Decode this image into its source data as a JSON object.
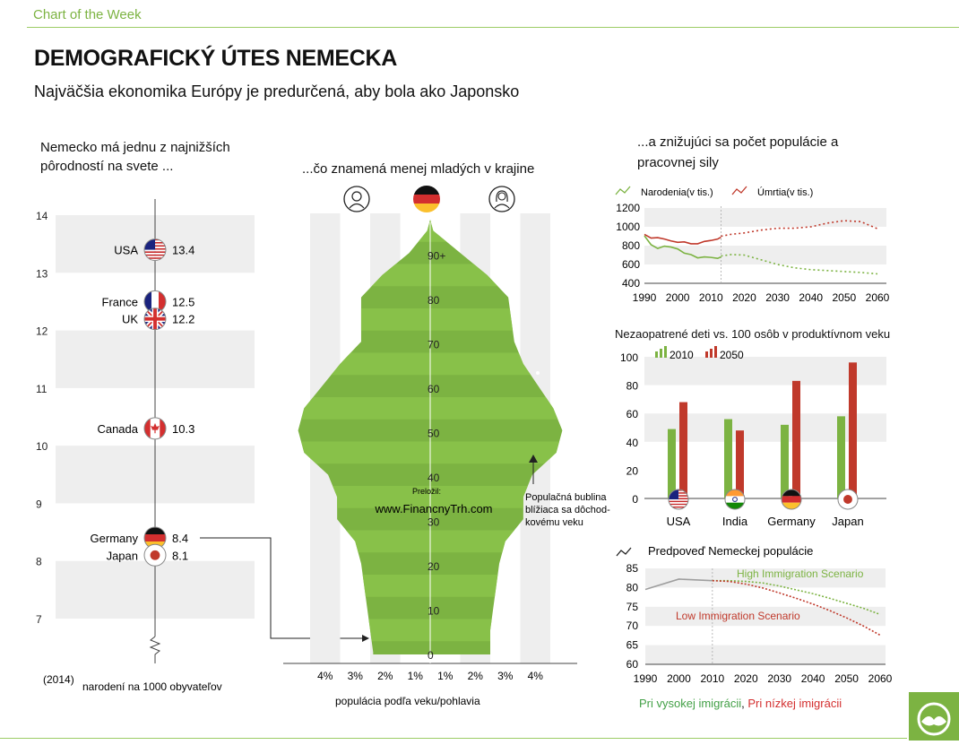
{
  "header": {
    "kicker": "Chart of the Week",
    "title": "DEMOGRAFICKÝ ÚTES NEMECKA",
    "subtitle": "Najväčšia ekonomika Európy je predurčená, aby bola ako Japonsko"
  },
  "left_panel": {
    "heading_line1": "Nemecko má jednu z najnižších",
    "heading_line2": "pôrodností na svete ...",
    "year_label": "(2014)",
    "axis_label": "narodení na 1000 obyvateľov"
  },
  "middle_panel": {
    "heading": "...čo znamená menej mladých v krajine",
    "xlabel": "populácia podľa veku/pohlavia",
    "watermark_line1": "Preložil:",
    "watermark_line2": "www.FinancnyTrh.com",
    "annotation_line1": "Populačná bublina",
    "annotation_line2": "blížiaca sa dôchod-",
    "annotation_line3": "kovému veku",
    "icons": [
      "male-icon",
      "germany-flag-icon",
      "female-icon"
    ]
  },
  "right_top": {
    "heading_line1": "...a znižujúci sa počet populácie a",
    "heading_line2": "pracovnej sily"
  },
  "right_mid": {
    "heading": "Nezaopatrené deti vs. 100 osôb v produktívnom veku"
  },
  "right_bottom": {
    "heading": "Predpoveď Nemeckej populácie",
    "high_label": "High Immigration Scenario",
    "low_label": "Low Immigration Scenario"
  },
  "footnote": {
    "green_text": "Pri vysokej imigrácii",
    "separator": ", ",
    "red_text": "Pri nízkej imigrácii"
  },
  "colors": {
    "green": "#7cb342",
    "dark_green": "#43a047",
    "red": "#c0392b",
    "band": "#eeeeee"
  },
  "chart_data": [
    {
      "type": "scatter",
      "ylim": [
        6.4,
        14
      ],
      "yticks": [
        7,
        8,
        9,
        10,
        11,
        12,
        13,
        14
      ],
      "points": [
        {
          "country": "USA",
          "value": 13.4,
          "label_side": "left"
        },
        {
          "country": "France",
          "value": 12.5,
          "label_side": "left"
        },
        {
          "country": "UK",
          "value": 12.2,
          "label_side": "left"
        },
        {
          "country": "Canada",
          "value": 10.3,
          "label_side": "left"
        },
        {
          "country": "Germany",
          "value": 8.4,
          "label_side": "left"
        },
        {
          "country": "Japan",
          "value": 8.1,
          "label_side": "left"
        }
      ]
    },
    {
      "type": "area",
      "ages": [
        0,
        5,
        10,
        15,
        20,
        25,
        30,
        35,
        40,
        45,
        50,
        55,
        60,
        65,
        70,
        75,
        80,
        85,
        90,
        95
      ],
      "male": [
        1.9,
        2.0,
        2.1,
        2.2,
        2.3,
        2.5,
        3.1,
        3.1,
        3.4,
        4.2,
        4.4,
        4.2,
        3.6,
        3.0,
        2.3,
        2.3,
        2.3,
        1.6,
        0.7,
        0.1
      ],
      "female": [
        2.0,
        2.0,
        2.1,
        2.2,
        2.3,
        2.5,
        3.1,
        3.1,
        3.4,
        4.2,
        4.4,
        4.1,
        3.6,
        3.1,
        2.8,
        2.7,
        2.6,
        1.9,
        1.0,
        0.1
      ],
      "age_ticks": [
        "0",
        "10",
        "20",
        "30",
        "40",
        "50",
        "60",
        "70",
        "80",
        "90+"
      ],
      "x_ticks": [
        "4%",
        "3%",
        "2%",
        "1%",
        "1%",
        "2%",
        "3%",
        "4%"
      ]
    },
    {
      "type": "line",
      "xlim": [
        1990,
        2060
      ],
      "ylim": [
        400,
        1200
      ],
      "xticks": [
        1990,
        2000,
        2010,
        2020,
        2030,
        2040,
        2050,
        2060
      ],
      "yticks": [
        400,
        600,
        800,
        1000,
        1200
      ],
      "projection_start": 2013,
      "series": [
        {
          "name": "Narodenia(v tis.)",
          "color": "#7cb342",
          "actual_x": [
            1990,
            1992,
            1994,
            1996,
            1998,
            2000,
            2002,
            2004,
            2006,
            2008,
            2010,
            2012,
            2013
          ],
          "actual_y": [
            905,
            810,
            770,
            795,
            785,
            765,
            720,
            705,
            670,
            680,
            675,
            665,
            680
          ],
          "proj_x": [
            2013,
            2016,
            2020,
            2025,
            2030,
            2035,
            2040,
            2045,
            2050,
            2055,
            2060
          ],
          "proj_y": [
            690,
            705,
            700,
            650,
            600,
            565,
            545,
            535,
            525,
            515,
            500
          ]
        },
        {
          "name": "Úmrtia(v tis.)",
          "color": "#c0392b",
          "actual_x": [
            1990,
            1992,
            1994,
            1996,
            1998,
            2000,
            2002,
            2004,
            2006,
            2008,
            2010,
            2012,
            2013
          ],
          "actual_y": [
            920,
            880,
            885,
            870,
            850,
            835,
            840,
            820,
            820,
            845,
            855,
            870,
            890
          ],
          "proj_x": [
            2013,
            2016,
            2020,
            2025,
            2030,
            2035,
            2040,
            2045,
            2050,
            2055,
            2060
          ],
          "proj_y": [
            900,
            920,
            935,
            965,
            985,
            985,
            1000,
            1040,
            1065,
            1055,
            980
          ]
        }
      ]
    },
    {
      "type": "bar",
      "ylim": [
        0,
        100
      ],
      "yticks": [
        0,
        20,
        40,
        60,
        80,
        100
      ],
      "categories": [
        "USA",
        "India",
        "Germany",
        "Japan"
      ],
      "series": [
        {
          "name": "2010",
          "color": "#7cb342",
          "values": [
            49,
            56,
            52,
            58
          ]
        },
        {
          "name": "2050",
          "color": "#c0392b",
          "values": [
            68,
            48,
            83,
            96
          ]
        }
      ]
    },
    {
      "type": "line",
      "xlim": [
        1990,
        2060
      ],
      "ylim": [
        60,
        85
      ],
      "xticks": [
        1990,
        2000,
        2010,
        2020,
        2030,
        2040,
        2050,
        2060
      ],
      "yticks": [
        60,
        65,
        70,
        75,
        80,
        85
      ],
      "series": [
        {
          "name": "historical",
          "color": "#9e9e9e",
          "x": [
            1990,
            2000,
            2010
          ],
          "y": [
            79.5,
            82.2,
            81.8
          ]
        },
        {
          "name": "High Immigration Scenario",
          "color": "#7cb342",
          "x": [
            2010,
            2015,
            2020,
            2025,
            2030,
            2035,
            2040,
            2045,
            2050,
            2055,
            2060
          ],
          "y": [
            81.8,
            81.8,
            81.6,
            81.2,
            80.4,
            79.4,
            78.4,
            77.2,
            75.9,
            74.6,
            73.0
          ]
        },
        {
          "name": "Low Immigration Scenario",
          "color": "#c0392b",
          "x": [
            2010,
            2015,
            2020,
            2025,
            2030,
            2035,
            2040,
            2045,
            2050,
            2055,
            2060
          ],
          "y": [
            81.8,
            81.6,
            80.9,
            79.9,
            78.6,
            77.2,
            75.7,
            74.0,
            72.1,
            70.0,
            67.6
          ]
        }
      ]
    }
  ]
}
